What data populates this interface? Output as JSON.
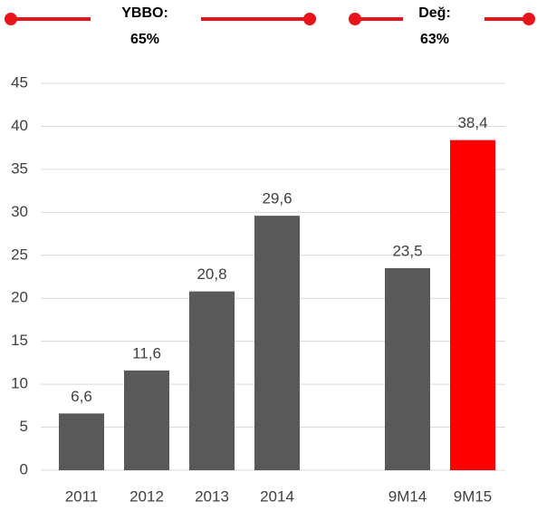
{
  "chart_data": {
    "type": "bar",
    "annotations": [
      {
        "text": [
          "YBBO:",
          "65%"
        ]
      },
      {
        "text": [
          "Değ:",
          "63%"
        ]
      }
    ],
    "categories": [
      "2011",
      "2012",
      "2013",
      "2014",
      null,
      "9M14",
      "9M15"
    ],
    "values": [
      6.6,
      11.6,
      20.8,
      29.6,
      null,
      23.5,
      38.4
    ],
    "value_labels": [
      "6,6",
      "11,6",
      "20,8",
      "29,6",
      null,
      "23,5",
      "38,4"
    ],
    "colors": [
      "#595959",
      "#595959",
      "#595959",
      "#595959",
      null,
      "#595959",
      "#ff0000"
    ],
    "annotation_color": "#e8141c",
    "ylim": [
      0,
      45
    ],
    "yticks": [
      0,
      5,
      10,
      15,
      20,
      25,
      30,
      35,
      40,
      45
    ],
    "grid": true
  }
}
